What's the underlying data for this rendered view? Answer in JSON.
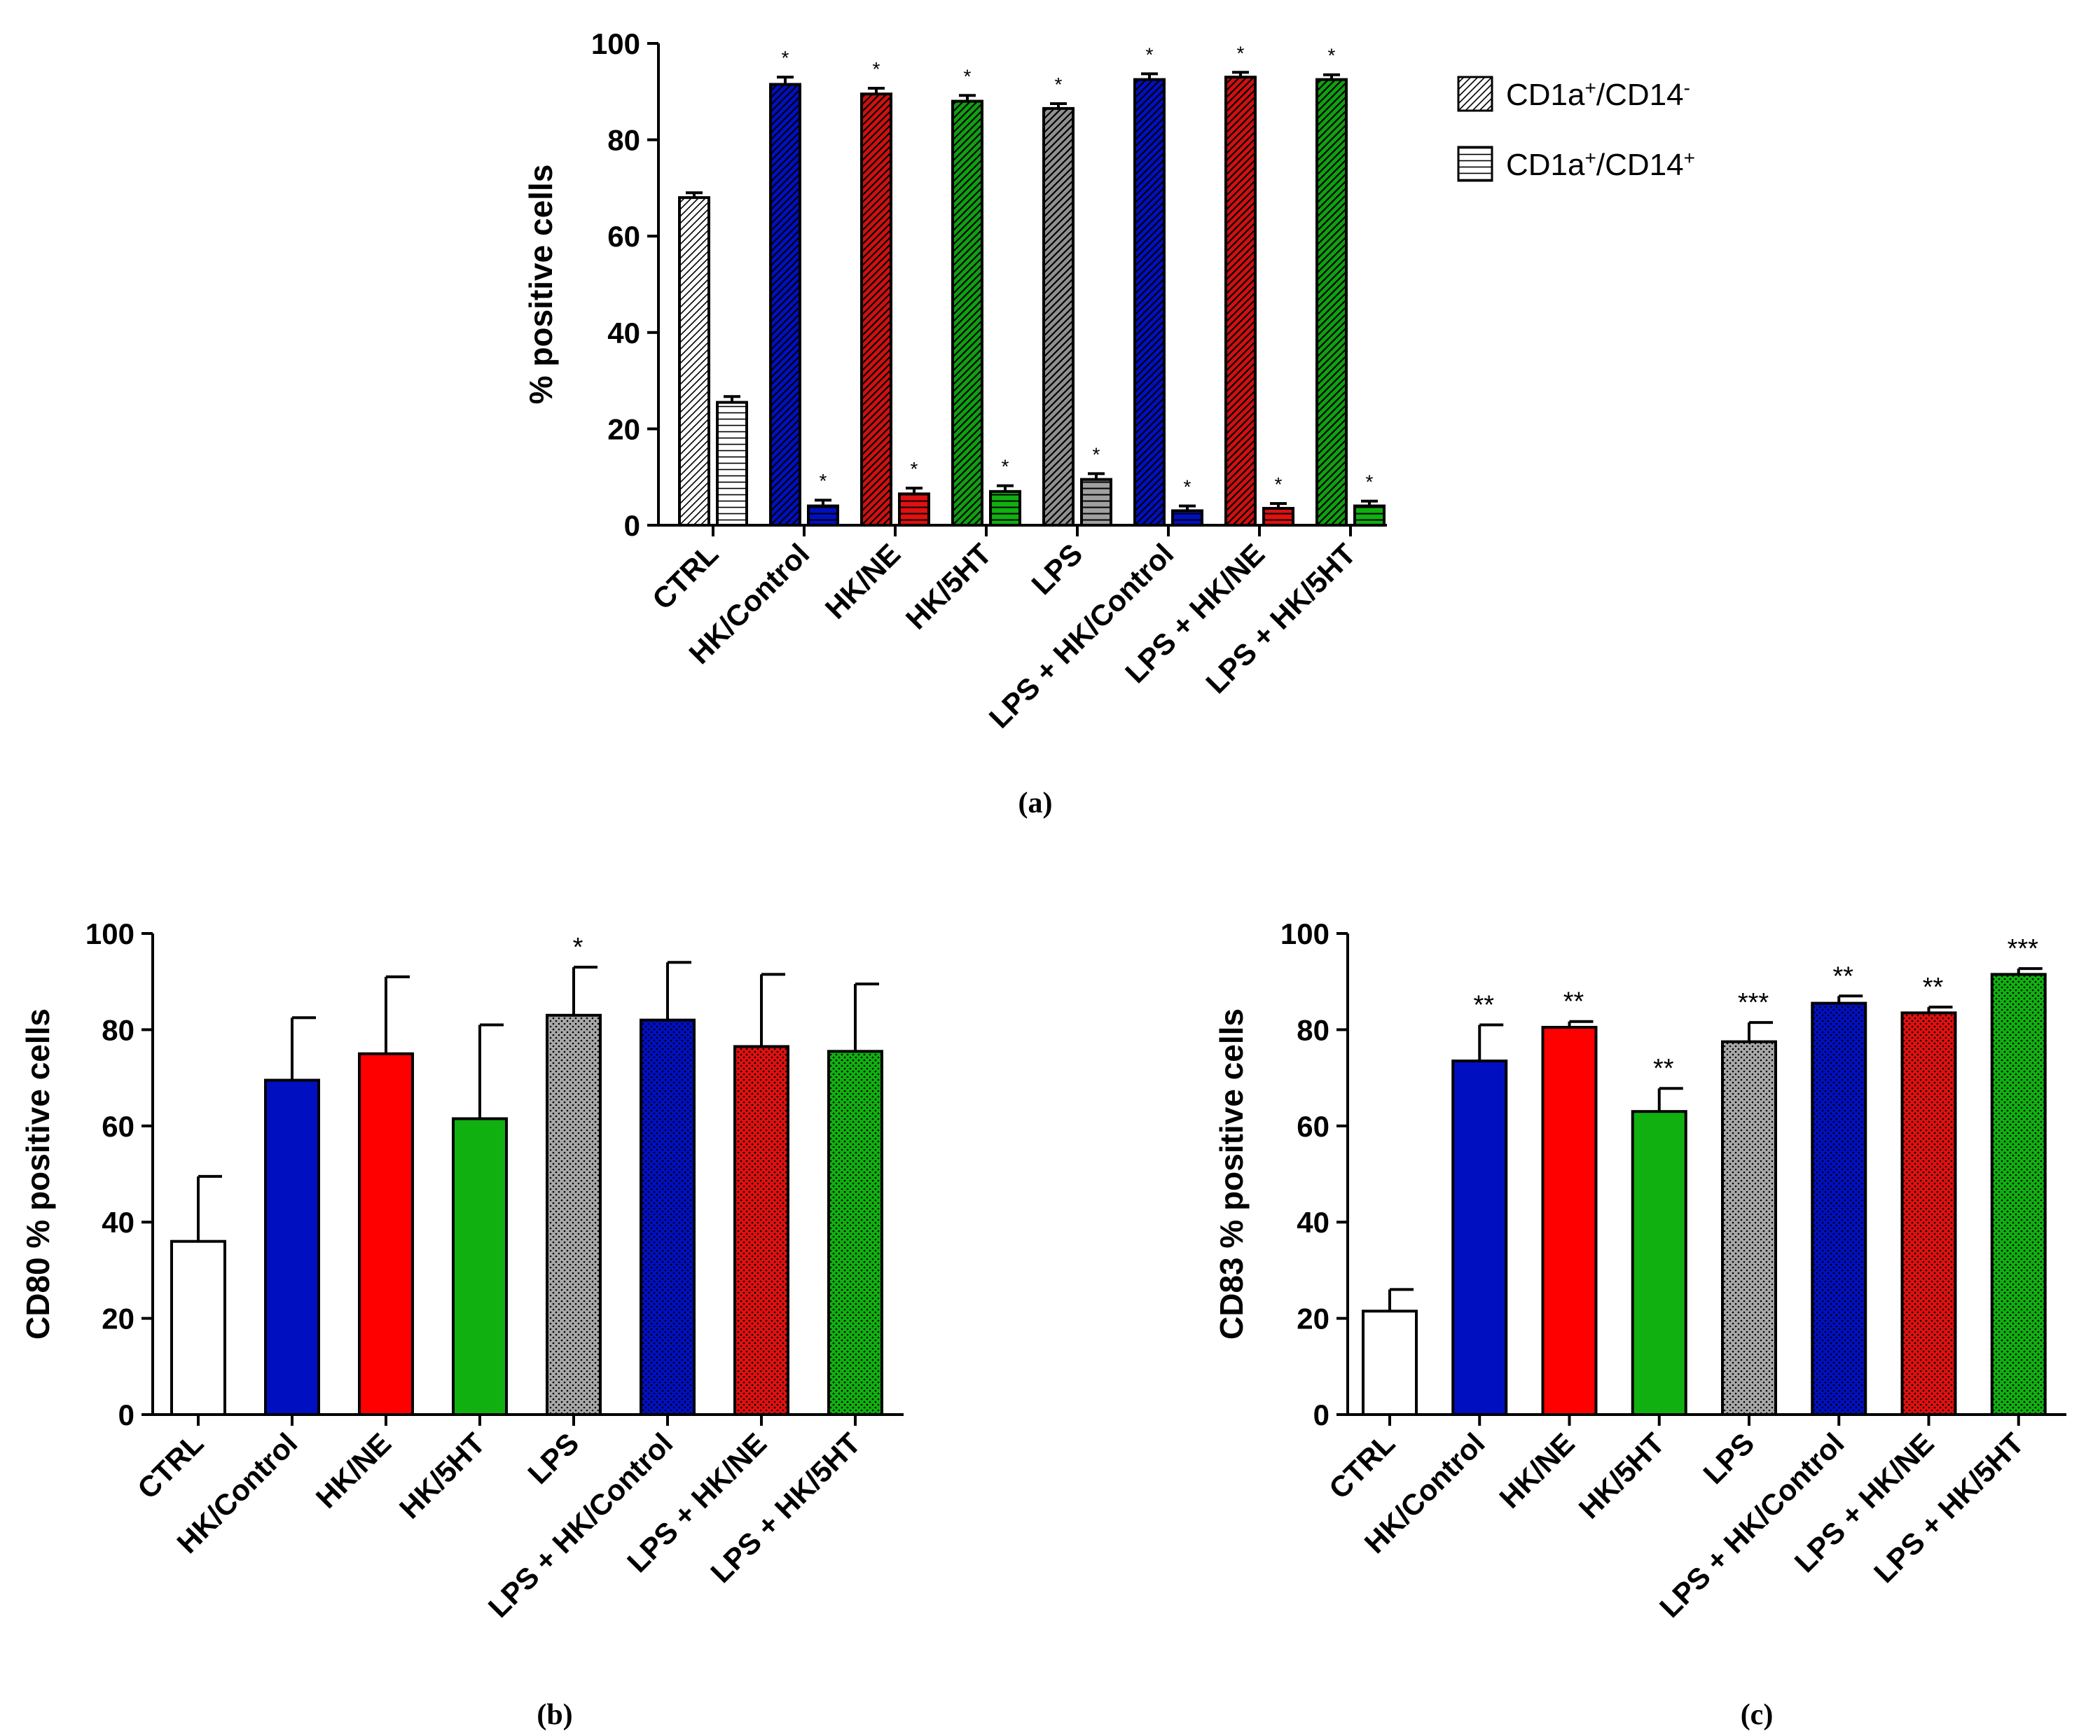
{
  "chart_data": [
    {
      "id": "a",
      "type": "bar",
      "panel_label": "(a)",
      "ylabel": "% positive cells",
      "xlabel": "",
      "ylim": [
        0,
        100
      ],
      "yticks": [
        0,
        20,
        40,
        60,
        80,
        100
      ],
      "categories": [
        "CTRL",
        "HK/Control",
        "HK/NE",
        "HK/5HT",
        "LPS",
        "LPS + HK/Control",
        "LPS + HK/NE",
        "LPS + HK/5HT"
      ],
      "category_colors": [
        "#ffffff",
        "#0010c0",
        "#e01010",
        "#10b010",
        "#a0a0a0",
        "#0010c0",
        "#e01010",
        "#10b010"
      ],
      "legend_position": "top-right",
      "series": [
        {
          "name": "CD1a⁺/CD14⁻",
          "name_base": "CD1a",
          "name_sup1": "+",
          "name_mid": "/CD14",
          "name_sup2": "-",
          "pattern": "diagonal",
          "values": [
            68,
            91.5,
            89.5,
            88,
            86.5,
            92.5,
            93,
            92.5
          ],
          "errors": [
            1.0,
            1.5,
            1.2,
            1.2,
            1.0,
            1.2,
            1.0,
            1.0
          ],
          "significance": [
            "",
            "*",
            "*",
            "*",
            "*",
            "*",
            "*",
            "*"
          ]
        },
        {
          "name": "CD1a⁺/CD14⁺",
          "name_base": "CD1a",
          "name_sup1": "+",
          "name_mid": "/CD14",
          "name_sup2": "+",
          "pattern": "horizontal",
          "values": [
            25.5,
            4,
            6.5,
            7,
            9.5,
            3,
            3.5,
            4
          ],
          "errors": [
            1.2,
            1.2,
            1.2,
            1.2,
            1.2,
            1.0,
            1.0,
            1.0
          ],
          "significance": [
            "",
            "*",
            "*",
            "*",
            "*",
            "*",
            "*",
            "*"
          ]
        }
      ]
    },
    {
      "id": "b",
      "type": "bar",
      "panel_label": "(b)",
      "ylabel": "CD80 % positive cells",
      "xlabel": "",
      "ylim": [
        0,
        100
      ],
      "yticks": [
        0,
        20,
        40,
        60,
        80,
        100
      ],
      "categories": [
        "CTRL",
        "HK/Control",
        "HK/NE",
        "HK/5HT",
        "LPS",
        "LPS + HK/Control",
        "LPS + HK/NE",
        "LPS + HK/5HT"
      ],
      "category_colors": [
        "#ffffff",
        "#0010c0",
        "#ff0000",
        "#10b010",
        "#a0a0a0",
        "#0010c0",
        "#e01010",
        "#10b010"
      ],
      "dotted": [
        false,
        false,
        false,
        false,
        true,
        true,
        true,
        true
      ],
      "values": [
        36,
        69.5,
        75,
        61.5,
        83,
        82,
        76.5,
        75.5
      ],
      "errors": [
        13.5,
        13,
        16,
        19.5,
        10,
        12,
        15,
        14
      ],
      "significance": [
        "",
        "",
        "",
        "",
        "*",
        "",
        "",
        ""
      ]
    },
    {
      "id": "c",
      "type": "bar",
      "panel_label": "(c)",
      "ylabel": "CD83 % positive cells",
      "xlabel": "",
      "ylim": [
        0,
        100
      ],
      "yticks": [
        0,
        20,
        40,
        60,
        80,
        100
      ],
      "categories": [
        "CTRL",
        "HK/Control",
        "HK/NE",
        "HK/5HT",
        "LPS",
        "LPS + HK/Control",
        "LPS + HK/NE",
        "LPS + HK/5HT"
      ],
      "category_colors": [
        "#ffffff",
        "#0010c0",
        "#ff0000",
        "#10b010",
        "#a0a0a0",
        "#0010c0",
        "#e01010",
        "#10b010"
      ],
      "dotted": [
        false,
        false,
        false,
        false,
        true,
        true,
        true,
        true
      ],
      "values": [
        21.5,
        73.5,
        80.5,
        63,
        77.5,
        85.5,
        83.5,
        91.5
      ],
      "errors": [
        4.5,
        7.5,
        1.2,
        4.8,
        4,
        1.5,
        1.2,
        1.2
      ],
      "significance": [
        "",
        "**",
        "**",
        "**",
        "***",
        "**",
        "**",
        "***"
      ]
    }
  ]
}
